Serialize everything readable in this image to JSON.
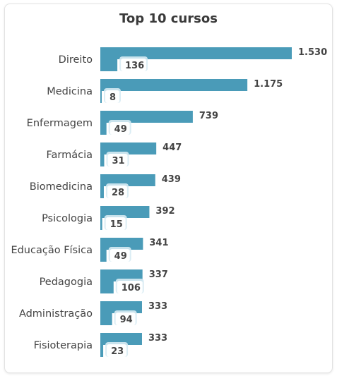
{
  "chart_data": {
    "type": "bar",
    "orientation": "horizontal",
    "title": "Top 10 cursos",
    "categories": [
      "Direito",
      "Medicina",
      "Enfermagem",
      "Farmácia",
      "Biomedicina",
      "Psicologia",
      "Educação Física",
      "Pedagogia",
      "Administração",
      "Fisioterapia"
    ],
    "series": [
      {
        "values": [
          1530,
          1175,
          739,
          447,
          439,
          392,
          341,
          337,
          333,
          333
        ],
        "labels": [
          "1.530",
          "1.175",
          "739",
          "447",
          "439",
          "392",
          "341",
          "337",
          "333",
          "333"
        ],
        "color": "#4a9bb8"
      },
      {
        "values": [
          136,
          8,
          49,
          31,
          28,
          15,
          49,
          106,
          94,
          23
        ],
        "labels": [
          "136",
          "8",
          "49",
          "31",
          "28",
          "15",
          "49",
          "106",
          "94",
          "23"
        ],
        "color": "#4a9bb8"
      }
    ],
    "xlim": [
      0,
      1750
    ],
    "grid": false,
    "legend": "none"
  }
}
